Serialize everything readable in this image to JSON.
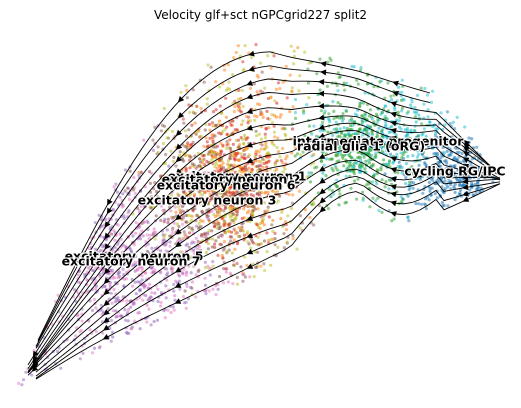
{
  "chart_data": {
    "type": "scatter",
    "title": "Velocity glf+sct nGPCgrid227 split2",
    "xlabel": "",
    "ylabel": "",
    "grid": false,
    "axes_visible": false,
    "legend": "none",
    "overlay": "velocity stream arrows (black)",
    "clusters": [
      {
        "name": "intermediate progenitor",
        "color": "#17becf"
      },
      {
        "name": "radial glia 1 (oRG)",
        "color": "#2ca02c"
      },
      {
        "name": "cycling RG/IPC",
        "color": "#1f77b4"
      },
      {
        "name": "excitatory neuron 1",
        "color": "#ff7f0e"
      },
      {
        "name": "excitatory neuron 2",
        "color": "#d62728"
      },
      {
        "name": "excitatory neuron 6",
        "color": "#bcbd22"
      },
      {
        "name": "excitatory neuron 3",
        "color": "#8c564b"
      },
      {
        "name": "excitatory neuron 5",
        "color": "#e377c2"
      },
      {
        "name": "excitatory neuron 7",
        "color": "#9467bd"
      }
    ]
  }
}
